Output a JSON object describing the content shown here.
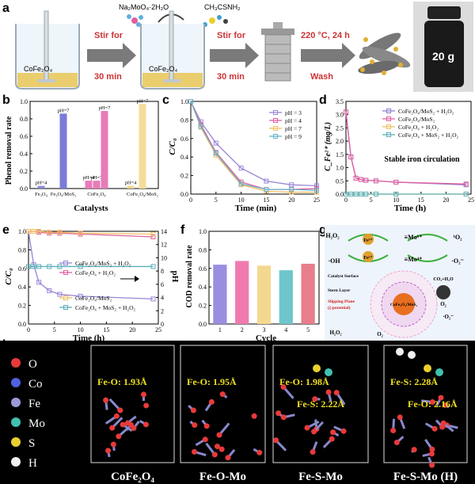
{
  "panel_a": {
    "letter": "a",
    "reagent_1": "Na₂MoO₄·2H₂O",
    "reagent_2": "CH₃CSNH₂",
    "beaker_label": "CoFe₂O₄",
    "step_1": [
      "Stir for",
      "30 min"
    ],
    "step_2": [
      "Stir for",
      "30 min"
    ],
    "step_3": [
      "220 °C, 24 h",
      "Wash"
    ],
    "vial_label": "20 g"
  },
  "panel_b": {
    "letter": "b",
    "ylabel": "Phenol removal rate",
    "xlabel": "Catalysts",
    "ylim": [
      0,
      1.0
    ],
    "yticks": [
      "0.0",
      "0.2",
      "0.4",
      "0.6",
      "0.8",
      "1.0"
    ],
    "bars": [
      {
        "label": "pH=4",
        "value": 0.03,
        "color": "#8a8ad6"
      },
      {
        "label": "pH=7",
        "value": 0.86,
        "color": "#7b7bd9"
      },
      {
        "label": "pH=4",
        "value": 0.09,
        "color": "#e87bb8"
      },
      {
        "label": "pH=7",
        "value": 0.09,
        "color": "#e87bb8"
      },
      {
        "label": "pH=7",
        "value": 0.89,
        "color": "#e87bb8"
      },
      {
        "label": "pH=4",
        "value": 0.03,
        "color": "#f0d48a"
      },
      {
        "label": "pH=7",
        "value": 0.97,
        "color": "#f5dc9a"
      }
    ],
    "groups": [
      "Fe₃O₄",
      "Fe₃O₄/MoS₂",
      "CoFe₂O₄",
      "CoFe₂O₄/MoS₂"
    ],
    "chart_data": {
      "type": "bar",
      "ylabel": "Phenol removal rate",
      "xlabel": "Catalysts",
      "ylim": [
        0,
        1.0
      ]
    }
  },
  "panel_c": {
    "letter": "c",
    "ylabel": "C/C₀",
    "xlabel": "Time (min)",
    "xticks": [
      "0",
      "5",
      "10",
      "15",
      "20",
      "25"
    ],
    "yticks": [
      "0.0",
      "0.2",
      "0.4",
      "0.6",
      "0.8",
      "1.0"
    ],
    "chart_data": {
      "type": "line",
      "x": [
        0,
        2,
        5,
        10,
        15,
        20,
        25
      ],
      "xlim": [
        0,
        25
      ],
      "ylim": [
        0,
        1.0
      ],
      "series": [
        {
          "name": "pH = 3",
          "values": [
            1.0,
            0.78,
            0.55,
            0.28,
            0.14,
            0.1,
            0.09
          ],
          "color": "#9a85d6"
        },
        {
          "name": "pH = 4",
          "values": [
            1.0,
            0.75,
            0.45,
            0.13,
            0.05,
            0.05,
            0.06
          ],
          "color": "#e060a0"
        },
        {
          "name": "pH = 7",
          "values": [
            1.0,
            0.72,
            0.42,
            0.1,
            0.03,
            0.02,
            0.02
          ],
          "color": "#f0c060"
        },
        {
          "name": "pH = 9",
          "values": [
            1.0,
            0.73,
            0.44,
            0.11,
            0.05,
            0.05,
            0.04
          ],
          "color": "#6ab0c8"
        }
      ]
    }
  },
  "panel_d": {
    "letter": "d",
    "ylabel": "C_Fe²⁺ (mg/L)",
    "xlabel": "Time (h)",
    "annotation": "Stable iron circulation",
    "xticks": [
      "0",
      "5",
      "10",
      "15",
      "20",
      "25"
    ],
    "yticks": [
      "0.0",
      "0.5",
      "1.0",
      "1.5",
      "2.0",
      "2.5",
      "3.0",
      "3.5"
    ],
    "chart_data": {
      "type": "line",
      "x": [
        0,
        1,
        2,
        3,
        4,
        6,
        10,
        24
      ],
      "xlim": [
        0,
        25
      ],
      "ylim": [
        0,
        3.5
      ],
      "series": [
        {
          "name": "CoFe₂O₄/MoS₂ + H₂O₂",
          "values": [
            3.1,
            1.4,
            0.6,
            0.55,
            0.52,
            0.5,
            0.45,
            0.35
          ],
          "color": "#8a80d0"
        },
        {
          "name": "CoFe₂O₄/MoS₂",
          "values": [
            3.1,
            1.4,
            0.6,
            0.55,
            0.52,
            0.5,
            0.45,
            0.38
          ],
          "color": "#e060a0"
        },
        {
          "name": "CoFe₂O₄ + H₂O₂",
          "values": [
            0,
            0,
            0,
            0,
            0,
            0,
            0,
            0
          ],
          "color": "#f0c060"
        },
        {
          "name": "CoFe₂O₄ + MoS₂ + H₂O₂",
          "values": [
            0,
            0,
            0,
            0,
            0,
            0,
            0,
            0
          ],
          "color": "#5ab0b8"
        }
      ]
    }
  },
  "panel_e": {
    "letter": "e",
    "ylabel": "C/C₀",
    "ylabel_right": "pH",
    "xlabel": "Time (h)",
    "xticks": [
      "0",
      "5",
      "10",
      "15",
      "20",
      "25"
    ],
    "yticks": [
      "0.0",
      "0.2",
      "0.4",
      "0.6",
      "0.8",
      "1.0"
    ],
    "yticks_right": [
      "0",
      "2",
      "4",
      "6",
      "8",
      "10",
      "12",
      "14"
    ],
    "chart_data": {
      "type": "line",
      "x": [
        0,
        1,
        2,
        4,
        6,
        10,
        24
      ],
      "xlim": [
        0,
        25
      ],
      "ylim": [
        0,
        1.0
      ],
      "series": [
        {
          "name": "CoFe₂O₄/MoS₂ + H₂O₂",
          "values": [
            1.0,
            0.64,
            0.45,
            0.36,
            0.32,
            0.3,
            0.27
          ],
          "color": "#9a85d6"
        },
        {
          "name": "CoFe₂O₄ + H₂O₂",
          "values": [
            1.0,
            1.0,
            0.99,
            0.98,
            0.98,
            0.97,
            0.94
          ],
          "color": "#e060a0"
        },
        {
          "name": "CoFe₂O₄/MoS₂",
          "values": [
            1.0,
            1.0,
            1.0,
            0.99,
            0.99,
            0.98,
            0.97
          ],
          "color": "#f0c060"
        },
        {
          "name": "CoFe₂O₄ + MoS₂ + H₂O₂",
          "values": [
            0.62,
            0.62,
            0.62,
            0.62,
            0.62,
            0.62,
            0.62
          ],
          "color": "#5ab0b8"
        }
      ]
    }
  },
  "panel_f": {
    "letter": "f",
    "ylabel": "COD removal rate",
    "xlabel": "Cycle",
    "yticks": [
      "0.0",
      "0.2",
      "0.4",
      "0.6",
      "0.8",
      "1.0"
    ],
    "chart_data": {
      "type": "bar",
      "categories": [
        "1",
        "2",
        "3",
        "4",
        "5"
      ],
      "values": [
        0.64,
        0.68,
        0.63,
        0.58,
        0.65
      ],
      "ylim": [
        0,
        1.0
      ],
      "colors": [
        "#9a8ee0",
        "#f07ab0",
        "#f5d890",
        "#6ec6cc",
        "#e87e8c"
      ]
    }
  },
  "panel_g": {
    "letter": "g",
    "labels": [
      "H₂O₂",
      "Fe³⁺",
      "≡Mo⁶⁺",
      "¹O₂",
      "·OH",
      "Fe²⁺",
      "≡Mo⁴⁺",
      "·O₂⁻",
      "Catalyst Surface",
      "Stern Layer",
      "Slipping Plane",
      "(ζ-potential)",
      "CO₂+H₂O",
      "O₂",
      "·O₂⁻",
      "H₂O₂",
      "O₂",
      "CoFe₂O₄/MoS₂"
    ]
  },
  "panel_h": {
    "letter": "h",
    "legend": [
      {
        "label": "O",
        "color": "#e83a3a"
      },
      {
        "label": "Co",
        "color": "#5060e0"
      },
      {
        "label": "Fe",
        "color": "#9a9ad8"
      },
      {
        "label": "Mo",
        "color": "#40c0b0"
      },
      {
        "label": "S",
        "color": "#e8d030"
      },
      {
        "label": "H",
        "color": "#f0f0f0"
      }
    ],
    "structures": [
      {
        "title": "CoFe₂O₄",
        "bond": "Fe-O: 1.93Å"
      },
      {
        "title": "Fe-O-Mo",
        "bond": "Fe-O: 1.95Å"
      },
      {
        "title": "Fe-S-Mo",
        "bond": "Fe-O: 1.98Å",
        "bond2": "Fe-S: 2.22Å"
      },
      {
        "title": "Fe-S-Mo (H)",
        "bond": "Fe-S: 2.28Å",
        "bond2": "Fe-O: 2.16Å"
      }
    ]
  }
}
